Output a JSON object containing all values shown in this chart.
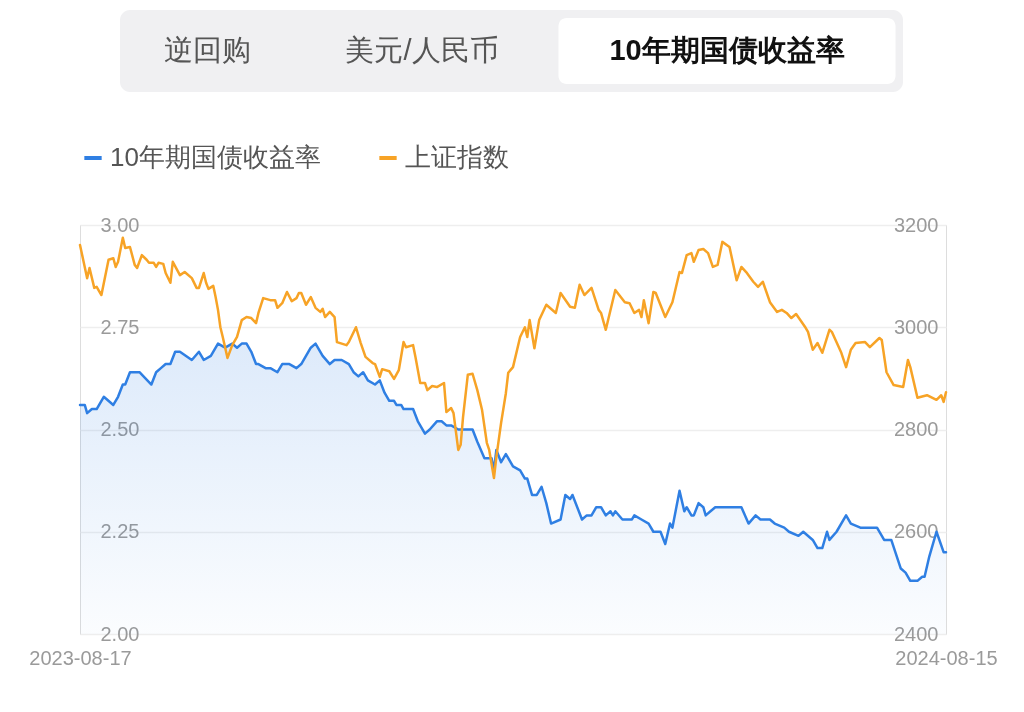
{
  "chart_data": {
    "type": "line",
    "annotations": [
      "逆回购",
      "美元/人民币",
      "10年期国债收益率"
    ],
    "xlim": [
      "2023-08-17",
      "2024-08-15"
    ],
    "xticks": [
      "2023-08-17",
      "2024-08-15"
    ],
    "ylim": [
      2.0,
      3.0
    ],
    "yticks": [
      {
        "value": 2.0,
        "label": "2.00"
      },
      {
        "value": 2.25,
        "label": "2.25"
      },
      {
        "value": 2.5,
        "label": "2.50"
      },
      {
        "value": 2.75,
        "label": "2.75"
      },
      {
        "value": 3.0,
        "label": "3.00"
      }
    ],
    "y2lim": [
      2400,
      3200
    ],
    "y2ticks": [
      2400,
      2600,
      2800,
      3000,
      3200
    ],
    "grid": "y",
    "legend": "top left",
    "series": [
      {
        "name": "10年期国债收益率",
        "color": "#2f7fe3",
        "type": "area",
        "x": [
          "2023-08-17",
          "2023-08-19",
          "2023-08-20",
          "2023-08-22",
          "2023-08-24",
          "2023-08-27",
          "2023-08-31",
          "2023-09-02",
          "2023-09-04",
          "2023-09-05",
          "2023-09-07",
          "2023-09-11",
          "2023-09-16",
          "2023-09-18",
          "2023-09-20",
          "2023-09-22",
          "2023-09-24",
          "2023-09-26",
          "2023-09-28",
          "2023-10-03",
          "2023-10-06",
          "2023-10-08",
          "2023-10-11",
          "2023-10-14",
          "2023-10-17",
          "2023-10-20",
          "2023-10-22",
          "2023-10-24",
          "2023-10-26",
          "2023-10-28",
          "2023-10-30",
          "2023-10-31",
          "2023-11-03",
          "2023-11-05",
          "2023-11-08",
          "2023-11-10",
          "2023-11-13",
          "2023-11-16",
          "2023-11-18",
          "2023-11-22",
          "2023-11-24",
          "2023-11-27",
          "2023-11-30",
          "2023-12-02",
          "2023-12-05",
          "2023-12-08",
          "2023-12-10",
          "2023-12-12",
          "2023-12-14",
          "2023-12-16",
          "2023-12-19",
          "2023-12-21",
          "2023-12-23",
          "2023-12-25",
          "2023-12-27",
          "2023-12-28",
          "2023-12-30",
          "2023-12-31",
          "2024-01-04",
          "2024-01-06",
          "2024-01-09",
          "2024-01-11",
          "2024-01-14",
          "2024-01-16",
          "2024-01-18",
          "2024-01-20",
          "2024-01-23",
          "2024-01-25",
          "2024-01-29",
          "2024-01-31",
          "2024-02-03",
          "2024-02-06",
          "2024-02-07",
          "2024-02-08",
          "2024-02-10",
          "2024-02-12",
          "2024-02-13",
          "2024-02-15",
          "2024-02-18",
          "2024-02-20",
          "2024-02-21",
          "2024-02-23",
          "2024-02-25",
          "2024-02-27",
          "2024-02-29",
          "2024-03-02",
          "2024-03-06",
          "2024-03-08",
          "2024-03-10",
          "2024-03-11",
          "2024-03-15",
          "2024-03-17",
          "2024-03-19",
          "2024-03-21",
          "2024-03-23",
          "2024-03-25",
          "2024-03-27",
          "2024-03-28",
          "2024-03-29",
          "2024-04-01",
          "2024-04-05",
          "2024-04-06",
          "2024-04-09",
          "2024-04-12",
          "2024-04-14",
          "2024-04-17",
          "2024-04-19",
          "2024-04-21",
          "2024-04-22",
          "2024-04-25",
          "2024-04-27",
          "2024-04-28",
          "2024-04-30",
          "2024-05-01",
          "2024-05-03",
          "2024-05-05",
          "2024-05-06",
          "2024-05-08",
          "2024-05-10",
          "2024-05-12",
          "2024-05-15",
          "2024-05-17",
          "2024-05-19",
          "2024-05-21",
          "2024-05-24",
          "2024-05-27",
          "2024-05-29",
          "2024-06-02",
          "2024-06-04",
          "2024-06-08",
          "2024-06-10",
          "2024-06-14",
          "2024-06-16",
          "2024-06-20",
          "2024-06-22",
          "2024-06-24",
          "2024-06-26",
          "2024-06-27",
          "2024-06-30",
          "2024-07-04",
          "2024-07-06",
          "2024-07-10",
          "2024-07-12",
          "2024-07-14",
          "2024-07-17",
          "2024-07-20",
          "2024-07-23",
          "2024-07-27",
          "2024-07-29",
          "2024-07-31",
          "2024-08-03",
          "2024-08-05",
          "2024-08-06",
          "2024-08-08",
          "2024-08-11",
          "2024-08-14",
          "2024-08-15"
        ],
        "values": [
          2.56,
          2.56,
          2.54,
          2.55,
          2.55,
          2.58,
          2.56,
          2.58,
          2.61,
          2.61,
          2.64,
          2.64,
          2.61,
          2.64,
          2.65,
          2.66,
          2.66,
          2.69,
          2.69,
          2.67,
          2.69,
          2.67,
          2.68,
          2.71,
          2.7,
          2.71,
          2.7,
          2.71,
          2.71,
          2.69,
          2.66,
          2.66,
          2.65,
          2.65,
          2.64,
          2.66,
          2.66,
          2.65,
          2.66,
          2.7,
          2.71,
          2.68,
          2.66,
          2.67,
          2.67,
          2.66,
          2.64,
          2.63,
          2.64,
          2.62,
          2.61,
          2.62,
          2.59,
          2.57,
          2.57,
          2.56,
          2.56,
          2.55,
          2.55,
          2.52,
          2.49,
          2.5,
          2.52,
          2.52,
          2.51,
          2.51,
          2.5,
          2.5,
          2.5,
          2.47,
          2.43,
          2.43,
          2.4,
          2.45,
          2.42,
          2.44,
          2.43,
          2.41,
          2.4,
          2.38,
          2.38,
          2.34,
          2.34,
          2.36,
          2.32,
          2.27,
          2.28,
          2.34,
          2.33,
          2.34,
          2.28,
          2.29,
          2.29,
          2.31,
          2.31,
          2.29,
          2.3,
          2.29,
          2.3,
          2.28,
          2.28,
          2.29,
          2.28,
          2.27,
          2.25,
          2.25,
          2.22,
          2.27,
          2.26,
          2.35,
          2.3,
          2.31,
          2.29,
          2.29,
          2.32,
          2.31,
          2.29,
          2.3,
          2.31,
          2.31,
          2.31,
          2.31,
          2.31,
          2.31,
          2.27,
          2.29,
          2.28,
          2.28,
          2.27,
          2.26,
          2.25,
          2.24,
          2.25,
          2.23,
          2.21,
          2.21,
          2.25,
          2.23,
          2.25,
          2.29,
          2.27,
          2.26,
          2.26,
          2.26,
          2.26,
          2.23,
          2.23,
          2.16,
          2.15,
          2.13,
          2.13,
          2.14,
          2.14,
          2.19,
          2.25,
          2.2,
          2.2
        ]
      },
      {
        "name": "上证指数",
        "color": "#f7a326",
        "axis": "y2",
        "x": [
          "2023-08-17",
          "2023-08-20",
          "2023-08-21",
          "2023-08-23",
          "2023-08-24",
          "2023-08-26",
          "2023-08-29",
          "2023-08-31",
          "2023-09-01",
          "2023-09-02",
          "2023-09-04",
          "2023-09-05",
          "2023-09-07",
          "2023-09-09",
          "2023-09-10",
          "2023-09-12",
          "2023-09-14",
          "2023-09-15",
          "2023-09-17",
          "2023-09-18",
          "2023-09-19",
          "2023-09-21",
          "2023-09-22",
          "2023-09-24",
          "2023-09-25",
          "2023-09-28",
          "2023-09-30",
          "2023-10-03",
          "2023-10-05",
          "2023-10-06",
          "2023-10-08",
          "2023-10-09",
          "2023-10-10",
          "2023-10-12",
          "2023-10-13",
          "2023-10-14",
          "2023-10-15",
          "2023-10-16",
          "2023-10-18",
          "2023-10-20",
          "2023-10-22",
          "2023-10-24",
          "2023-10-26",
          "2023-10-28",
          "2023-10-30",
          "2023-10-31",
          "2023-11-02",
          "2023-11-05",
          "2023-11-07",
          "2023-11-08",
          "2023-11-10",
          "2023-11-12",
          "2023-11-14",
          "2023-11-16",
          "2023-11-17",
          "2023-11-18",
          "2023-11-20",
          "2023-11-22",
          "2023-11-24",
          "2023-11-26",
          "2023-11-27",
          "2023-11-28",
          "2023-11-30",
          "2023-12-02",
          "2023-12-03",
          "2023-12-07",
          "2023-12-08",
          "2023-12-11",
          "2023-12-13",
          "2023-12-15",
          "2023-12-18",
          "2023-12-19",
          "2023-12-21",
          "2023-12-22",
          "2023-12-25",
          "2023-12-27",
          "2023-12-29",
          "2023-12-31",
          "2024-01-01",
          "2024-01-04",
          "2024-01-05",
          "2024-01-07",
          "2024-01-09",
          "2024-01-10",
          "2024-01-12",
          "2024-01-14",
          "2024-01-17",
          "2024-01-18",
          "2024-01-20",
          "2024-01-21",
          "2024-01-23",
          "2024-01-24",
          "2024-01-25",
          "2024-01-27",
          "2024-01-29",
          "2024-01-31",
          "2024-02-02",
          "2024-02-04",
          "2024-02-05",
          "2024-02-07",
          "2024-02-08",
          "2024-02-10",
          "2024-02-12",
          "2024-02-13",
          "2024-02-15",
          "2024-02-18",
          "2024-02-20",
          "2024-02-21",
          "2024-02-22",
          "2024-02-24",
          "2024-02-26",
          "2024-02-29",
          "2024-03-04",
          "2024-03-06",
          "2024-03-10",
          "2024-03-12",
          "2024-03-14",
          "2024-03-16",
          "2024-03-19",
          "2024-03-22",
          "2024-03-23",
          "2024-03-25",
          "2024-03-29",
          "2024-04-02",
          "2024-04-04",
          "2024-04-06",
          "2024-04-08",
          "2024-04-09",
          "2024-04-10",
          "2024-04-12",
          "2024-04-14",
          "2024-04-15",
          "2024-04-19",
          "2024-04-22",
          "2024-04-25",
          "2024-04-26",
          "2024-04-28",
          "2024-04-30",
          "2024-05-01",
          "2024-05-03",
          "2024-05-05",
          "2024-05-07",
          "2024-05-09",
          "2024-05-11",
          "2024-05-13",
          "2024-05-16",
          "2024-05-19",
          "2024-05-21",
          "2024-05-23",
          "2024-05-26",
          "2024-05-28",
          "2024-05-30",
          "2024-06-02",
          "2024-06-05",
          "2024-06-07",
          "2024-06-09",
          "2024-06-11",
          "2024-06-13",
          "2024-06-17",
          "2024-06-18",
          "2024-06-20",
          "2024-06-22",
          "2024-06-24",
          "2024-06-27",
          "2024-06-28",
          "2024-07-02",
          "2024-07-04",
          "2024-07-06",
          "2024-07-08",
          "2024-07-12",
          "2024-07-14",
          "2024-07-18",
          "2024-07-19",
          "2024-07-21",
          "2024-07-24",
          "2024-07-28",
          "2024-07-30",
          "2024-07-31",
          "2024-08-03",
          "2024-08-07",
          "2024-08-11",
          "2024-08-13",
          "2024-08-14",
          "2024-08-15"
        ],
        "values": [
          3161,
          3096,
          3116,
          3077,
          3079,
          3063,
          3132,
          3135,
          3118,
          3128,
          3175,
          3155,
          3157,
          3122,
          3116,
          3141,
          3132,
          3126,
          3126,
          3118,
          3126,
          3124,
          3106,
          3087,
          3128,
          3102,
          3108,
          3096,
          3077,
          3077,
          3106,
          3087,
          3075,
          3081,
          3059,
          3034,
          3000,
          2981,
          2940,
          2965,
          2981,
          3014,
          3020,
          3018,
          3008,
          3028,
          3057,
          3053,
          3053,
          3038,
          3047,
          3069,
          3051,
          3057,
          3067,
          3067,
          3044,
          3059,
          3038,
          3030,
          3036,
          3020,
          3030,
          3020,
          2971,
          2965,
          2971,
          3000,
          2969,
          2942,
          2930,
          2928,
          2903,
          2918,
          2914,
          2899,
          2916,
          2971,
          2961,
          2965,
          2942,
          2891,
          2891,
          2877,
          2885,
          2883,
          2891,
          2834,
          2842,
          2832,
          2760,
          2770,
          2824,
          2907,
          2909,
          2877,
          2838,
          2774,
          2760,
          2705,
          2746,
          2813,
          2871,
          2911,
          2922,
          2981,
          3000,
          2981,
          3014,
          2959,
          3014,
          3044,
          3028,
          3067,
          3040,
          3038,
          3083,
          3063,
          3077,
          3034,
          3028,
          2995,
          3073,
          3049,
          3047,
          3028,
          3034,
          3020,
          3053,
          3008,
          3069,
          3067,
          3020,
          3049,
          3108,
          3106,
          3141,
          3145,
          3128,
          3151,
          3153,
          3145,
          3118,
          3122,
          3167,
          3157,
          3092,
          3118,
          3108,
          3089,
          3079,
          3089,
          3049,
          3030,
          3034,
          3028,
          3018,
          3026,
          2999,
          2991,
          2956,
          2969,
          2950,
          2995,
          2991,
          2950,
          2922,
          2956,
          2969,
          2971,
          2961,
          2979,
          2975,
          2912,
          2887,
          2883,
          2936,
          2922,
          2862,
          2867,
          2858,
          2867,
          2854,
          2873
        ]
      }
    ]
  }
}
